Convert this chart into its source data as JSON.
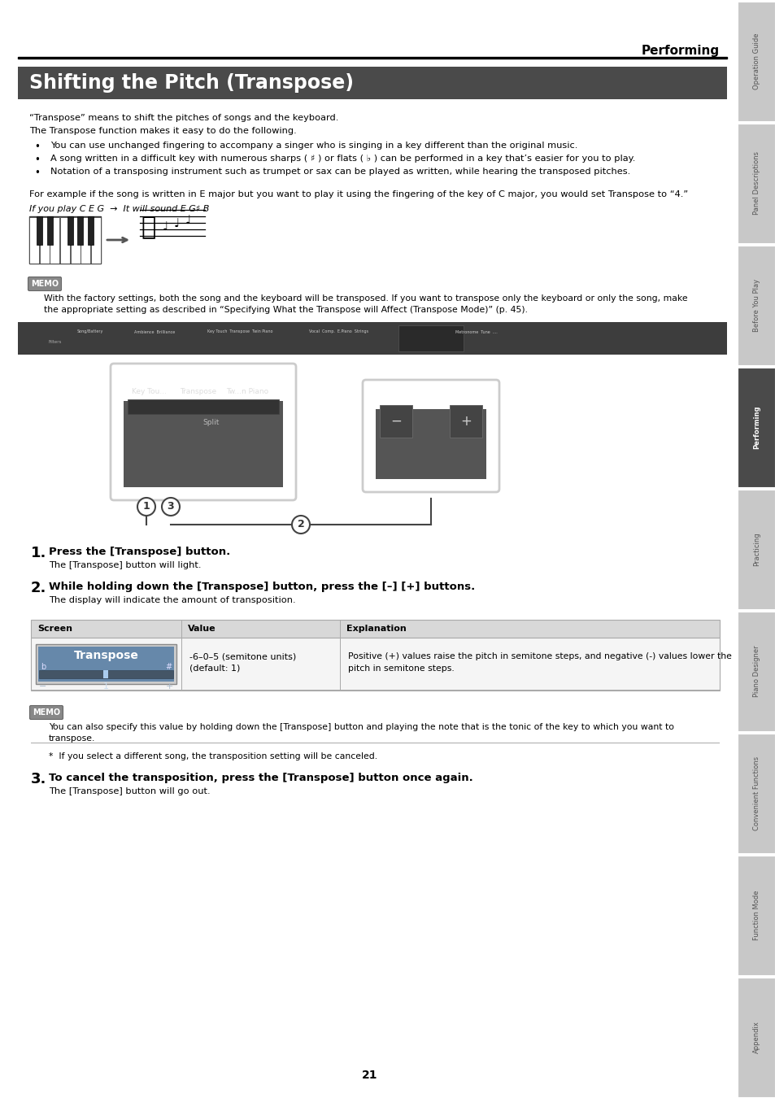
{
  "page_title": "Performing",
  "section_title": "Shifting the Pitch (Transpose)",
  "section_bg": "#4a4a4a",
  "section_title_color": "#ffffff",
  "sidebar_tabs": [
    "Operation Guide",
    "Panel Descriptions",
    "Before You Play",
    "Performing",
    "Practicing",
    "Piano Designer",
    "Convenient Functions",
    "Function Mode",
    "Appendix"
  ],
  "sidebar_active": "Performing",
  "sidebar_active_color": "#4a4a4a",
  "sidebar_inactive_color": "#c8c8c8",
  "page_number": "21",
  "intro_text1": "“Transpose” means to shift the pitches of songs and the keyboard.",
  "intro_text2": "The Transpose function makes it easy to do the following.",
  "bullet1": "You can use unchanged fingering to accompany a singer who is singing in a key different than the original music.",
  "bullet2": "A song written in a difficult key with numerous sharps ( ♯ ) or flats ( ♭ ) can be performed in a key that’s easier for you to play.",
  "bullet3": "Notation of a transposing instrument such as trumpet or sax can be played as written, while hearing the transposed pitches.",
  "example_text": "For example if the song is written in E major but you want to play it using the fingering of the key of C major, you would set Transpose to “4.”",
  "keyboard_caption": "If you play C E G  →  It will sound E G♯ B",
  "memo_label": "MEMO",
  "memo_text1": "With the factory settings, both the song and the keyboard will be transposed. If you want to transpose only the keyboard or only the song, make",
  "memo_text2": "the appropriate setting as described in “Specifying What the Transpose will Affect (Transpose Mode)” (p. 45).",
  "step1_bold": "Press the [Transpose] button.",
  "step1_text": "The [Transpose] button will light.",
  "step2_bold": "While holding down the [Transpose] button, press the [–] [+] buttons.",
  "step2_text": "The display will indicate the amount of transposition.",
  "table_headers": [
    "Screen",
    "Value",
    "Explanation"
  ],
  "table_value_line1": "-6–0–5 (semitone units)",
  "table_value_line2": "(default: 1)",
  "table_explanation_line1": "Positive (+) values raise the pitch in semitone steps, and negative (-) values lower the",
  "table_explanation_line2": "pitch in semitone steps.",
  "memo2_text1": "You can also specify this value by holding down the [Transpose] button and playing the note that is the tonic of the key to which you want to",
  "memo2_text2": "transpose.",
  "asterisk_text": "*  If you select a different song, the transposition setting will be canceled.",
  "step3_bold": "To cancel the transposition, press the [Transpose] button once again.",
  "step3_text": "The [Transpose] button will go out."
}
